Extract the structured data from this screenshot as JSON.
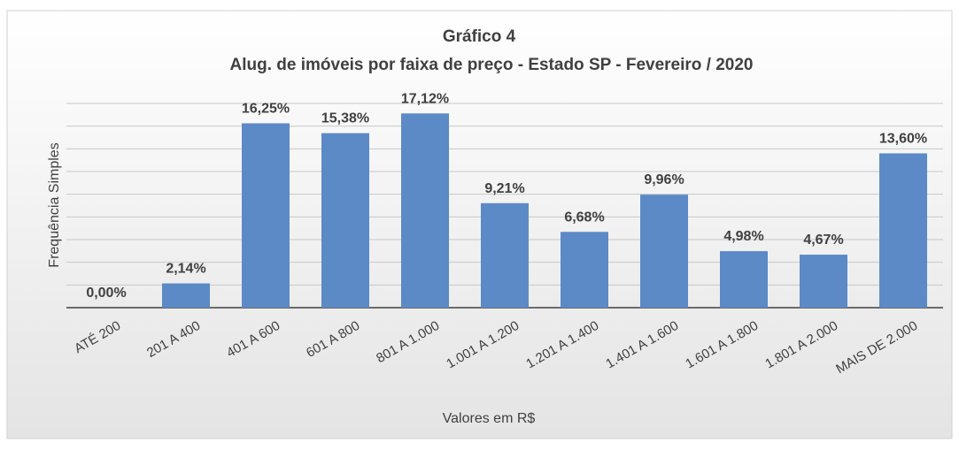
{
  "chart_data": {
    "type": "bar",
    "title": "Gráfico 4",
    "subtitle": "Alug. de imóveis por faixa de preço - Estado SP - Fevereiro / 2020",
    "x_label": "Valores em R$",
    "y_label": "Frequência Simples",
    "categories": [
      "ATÉ 200",
      "201 A 400",
      "401 A 600",
      "601 A 800",
      "801 A 1.000",
      "1.001 A 1.200",
      "1.201 A 1.400",
      "1.401 A 1.600",
      "1.601 A 1.800",
      "1.801 A 2.000",
      "MAIS DE 2.000"
    ],
    "values": [
      0,
      2.14,
      16.25,
      15.38,
      17.12,
      9.21,
      6.68,
      9.96,
      4.98,
      4.67,
      13.6
    ],
    "value_labels": [
      "0,00%",
      "2,14%",
      "16,25%",
      "15,38%",
      "17,12%",
      "9,21%",
      "6,68%",
      "9,96%",
      "4,98%",
      "4,67%",
      "13,60%"
    ],
    "color": "#5b8ac6",
    "ylim": [
      0,
      18
    ],
    "yticks": [
      0,
      2,
      4,
      6,
      8,
      10,
      12,
      14,
      16,
      18
    ],
    "grid": true
  }
}
